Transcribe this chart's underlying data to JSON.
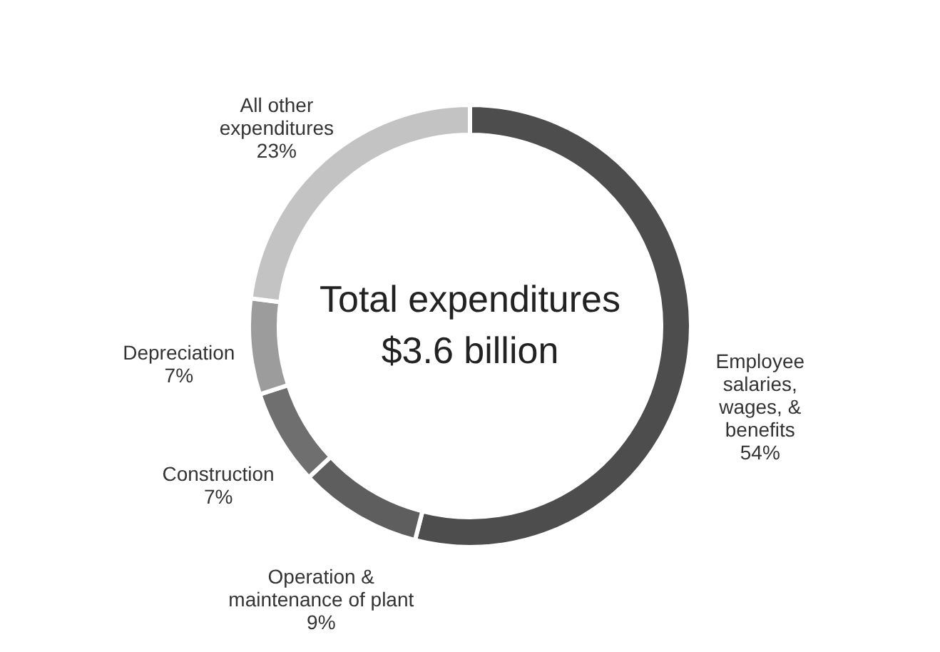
{
  "chart_data": {
    "type": "donut",
    "categories": [
      "Employee\nsalaries,\nwages, &\nbenefits",
      "Operation &\nmaintenance of plant",
      "Construction",
      "Depreciation",
      "All other\nexpenditures"
    ],
    "values": [
      54,
      9,
      7,
      7,
      23
    ],
    "colors": [
      "#4d4d4d",
      "#5e5e5e",
      "#6f6f6f",
      "#9c9c9c",
      "#c3c3c3"
    ],
    "value_labels": [
      "54%",
      "9%",
      "7%",
      "7%",
      "23%"
    ],
    "annotations": [
      "Total expenditures",
      "$3.6 billion"
    ],
    "legend": false
  }
}
